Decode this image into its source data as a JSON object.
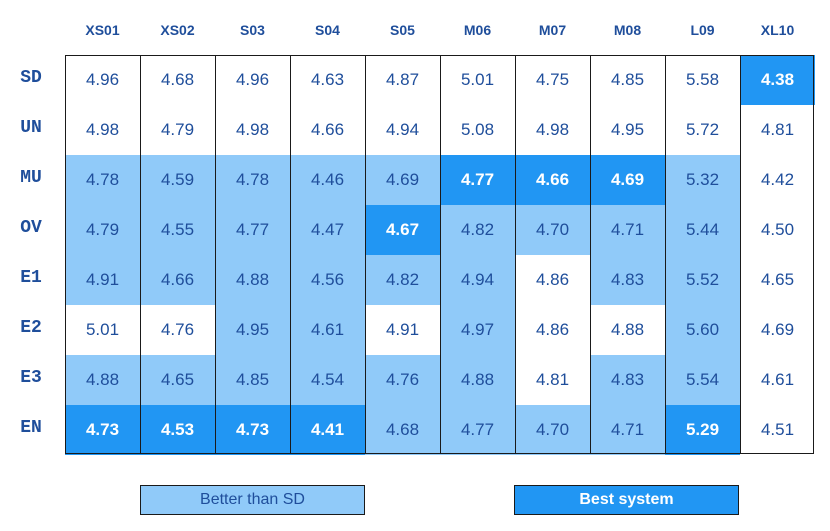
{
  "chart_data": {
    "type": "table",
    "columns": [
      "XS01",
      "XS02",
      "S03",
      "S04",
      "S05",
      "M06",
      "M07",
      "M08",
      "L09",
      "XL10"
    ],
    "rows": [
      {
        "label": "SD",
        "values": [
          4.96,
          4.68,
          4.96,
          4.63,
          4.87,
          5.01,
          4.75,
          4.85,
          5.58,
          4.38
        ],
        "status": [
          "none",
          "none",
          "none",
          "none",
          "none",
          "none",
          "none",
          "none",
          "none",
          "best"
        ]
      },
      {
        "label": "UN",
        "values": [
          4.98,
          4.79,
          4.98,
          4.66,
          4.94,
          5.08,
          4.98,
          4.95,
          5.72,
          4.81
        ],
        "status": [
          "none",
          "none",
          "none",
          "none",
          "none",
          "none",
          "none",
          "none",
          "none",
          "none"
        ]
      },
      {
        "label": "MU",
        "values": [
          4.78,
          4.59,
          4.78,
          4.46,
          4.69,
          4.77,
          4.66,
          4.69,
          5.32,
          4.42
        ],
        "status": [
          "better",
          "better",
          "better",
          "better",
          "better",
          "best",
          "best",
          "best",
          "better",
          "none"
        ]
      },
      {
        "label": "OV",
        "values": [
          4.79,
          4.55,
          4.77,
          4.47,
          4.67,
          4.82,
          4.7,
          4.71,
          5.44,
          4.5
        ],
        "status": [
          "better",
          "better",
          "better",
          "better",
          "best",
          "better",
          "better",
          "better",
          "better",
          "none"
        ]
      },
      {
        "label": "E1",
        "values": [
          4.91,
          4.66,
          4.88,
          4.56,
          4.82,
          4.94,
          4.86,
          4.83,
          5.52,
          4.65
        ],
        "status": [
          "better",
          "better",
          "better",
          "better",
          "better",
          "better",
          "none",
          "better",
          "better",
          "none"
        ]
      },
      {
        "label": "E2",
        "values": [
          5.01,
          4.76,
          4.95,
          4.61,
          4.91,
          4.97,
          4.86,
          4.88,
          5.6,
          4.69
        ],
        "status": [
          "none",
          "none",
          "better",
          "better",
          "none",
          "better",
          "none",
          "none",
          "better",
          "none"
        ]
      },
      {
        "label": "E3",
        "values": [
          4.88,
          4.65,
          4.85,
          4.54,
          4.76,
          4.88,
          4.81,
          4.83,
          5.54,
          4.61
        ],
        "status": [
          "better",
          "better",
          "better",
          "better",
          "better",
          "better",
          "none",
          "better",
          "better",
          "none"
        ]
      },
      {
        "label": "EN",
        "values": [
          4.73,
          4.53,
          4.73,
          4.41,
          4.68,
          4.77,
          4.7,
          4.71,
          5.29,
          4.51
        ],
        "status": [
          "best",
          "best",
          "best",
          "best",
          "better",
          "better",
          "better",
          "better",
          "best",
          "none"
        ]
      }
    ],
    "legend": [
      {
        "label": "Better than SD",
        "color": "#90caf9"
      },
      {
        "label": "Best system",
        "color": "#2196f3"
      }
    ]
  }
}
